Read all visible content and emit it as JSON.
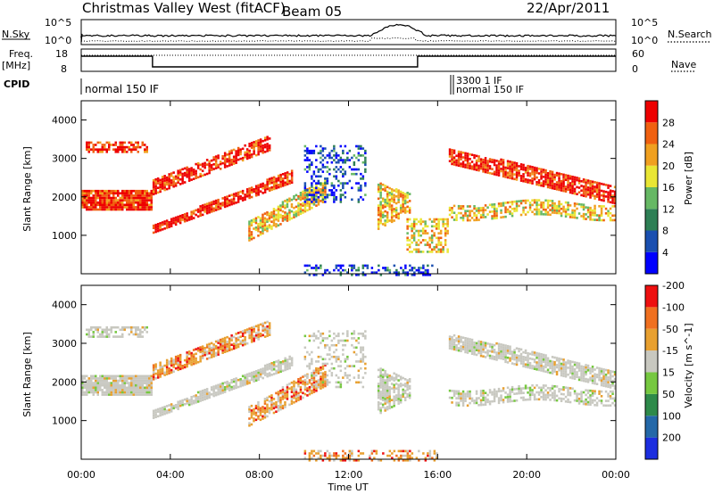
{
  "header": {
    "station": "Christmas Valley West (fitACF)",
    "beam": "Beam 05",
    "date": "22/Apr/2011"
  },
  "top_panels": {
    "nsky_label": "N.Sky",
    "nsky_ticks": [
      "10^5",
      "10^0"
    ],
    "nsearch_label": "N.Search",
    "freq_label": "Freq.",
    "freq_unit": "[MHz]",
    "freq_ticks": [
      "18",
      "8"
    ],
    "nave_ticks": [
      "60",
      "0"
    ],
    "nave_label": "Nave",
    "cpid_label": "CPID",
    "cpid_text": "normal 150 IF",
    "cpid_overlap": "3300 1 IF",
    "cpid_overlap2": "normal 150 IF"
  },
  "chart_data": [
    {
      "type": "heatmap",
      "name": "power",
      "ylabel": "Slant Range [km]",
      "yticks": [
        1000,
        2000,
        3000,
        4000
      ],
      "ylim": [
        0,
        4500
      ],
      "colorbar_label": "Power [dB]",
      "colorbar_ticks": [
        4,
        8,
        12,
        16,
        20,
        24,
        28
      ],
      "colors": [
        "#0000ff",
        "#1a4fb0",
        "#2e7f55",
        "#66b864",
        "#e9e634",
        "#f0a020",
        "#f06010",
        "#ee0000"
      ]
    },
    {
      "type": "heatmap",
      "name": "velocity",
      "ylabel": "Slant Range [km]",
      "yticks": [
        1000,
        2000,
        3000,
        4000
      ],
      "ylim": [
        0,
        4500
      ],
      "colorbar_label": "Velocity [m s^-1]",
      "colorbar_ticks": [
        200,
        100,
        50,
        15,
        -15,
        -50,
        -100,
        -200
      ],
      "colors": [
        "#1c2ee0",
        "#2468a8",
        "#2e8a4a",
        "#76c840",
        "#c8c8c0",
        "#e8a030",
        "#f07020",
        "#ee1010"
      ]
    }
  ],
  "xaxis": {
    "label": "Time UT",
    "ticks": [
      "00:00",
      "04:00",
      "08:00",
      "12:00",
      "16:00",
      "20:00",
      "00:00"
    ]
  }
}
